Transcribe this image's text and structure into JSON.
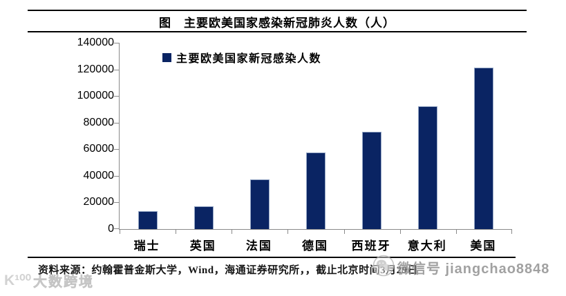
{
  "header": {
    "title": "图　主要欧美国家感染新冠肺炎人数（人）"
  },
  "chart_data": {
    "type": "bar",
    "title": "图　主要欧美国家感染新冠肺炎人数（人）",
    "legend_label": "主要欧美国家新冠感染人数",
    "legend_position": "top-left-inside",
    "categories": [
      "瑞士",
      "英国",
      "法国",
      "德国",
      "西班牙",
      "意大利",
      "美国"
    ],
    "values": [
      13400,
      17100,
      37600,
      57700,
      73200,
      92500,
      121500
    ],
    "xlabel": "",
    "ylabel": "",
    "ylim": [
      0,
      140000
    ],
    "ytick_step": 20000,
    "yticks": [
      "140000",
      "120000",
      "100000",
      "80000",
      "60000",
      "40000",
      "20000",
      "0"
    ],
    "grid": false,
    "bar_color": "#0a2463"
  },
  "footer": {
    "source_text": "资料来源：约翰霍普金斯大学，Wind，海通证券研究所，，截止北京时间3月29日",
    "wechat_watermark_text": "微信号 jiangchao8848",
    "brand_watermark_logo": "K¹⁰⁰",
    "brand_watermark_text": "大数跨境"
  },
  "colors": {
    "bar": "#0a2463",
    "axis": "#898989",
    "rule": "#000000",
    "wechat_watermark": "#8d8d8d",
    "brand_watermark": "#d2d2d2"
  }
}
